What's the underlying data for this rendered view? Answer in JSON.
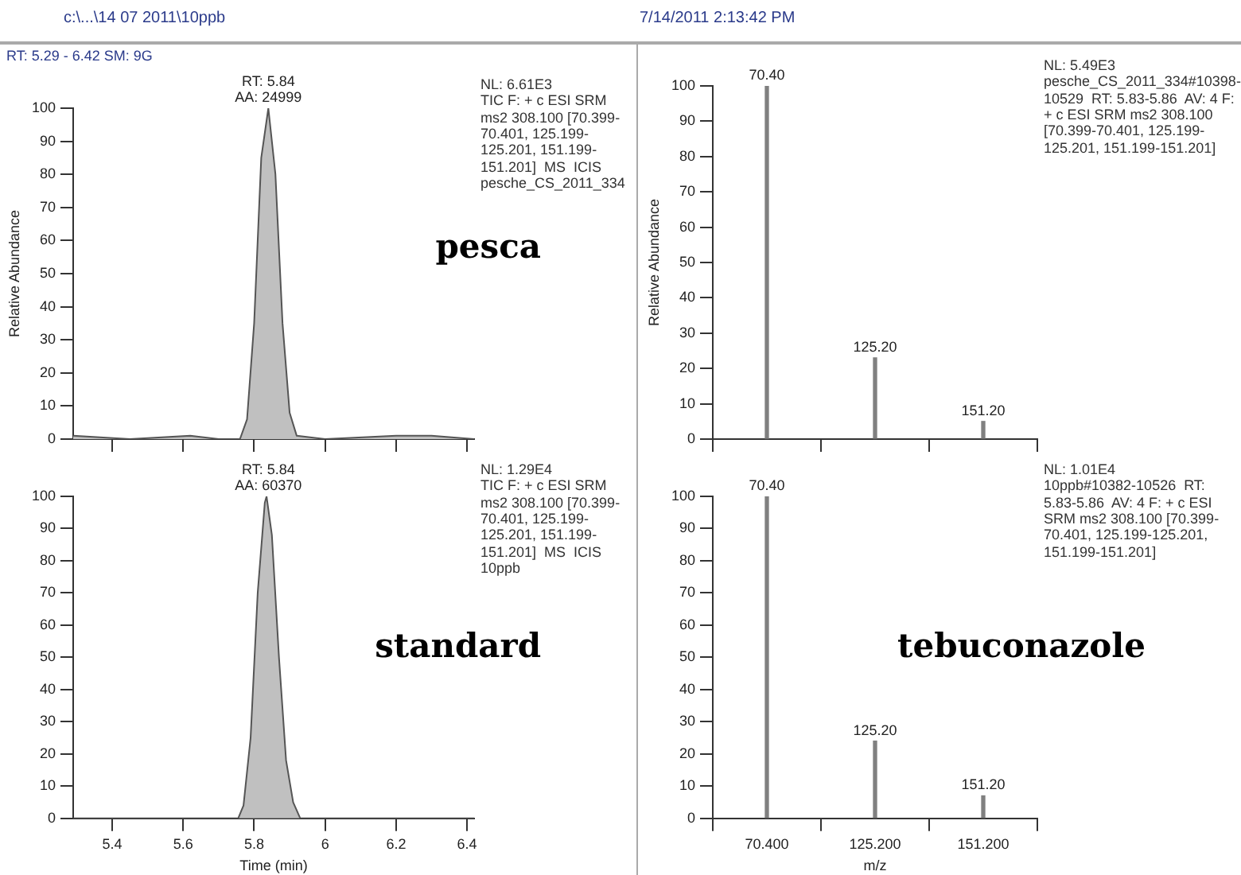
{
  "chart_data": [
    {
      "type": "area",
      "title": "c:\\...\\14 07 2011\\10ppb",
      "subtitle": "RT: 5.29 - 6.42  SM: 9G",
      "ylabel": "Relative Abundance",
      "x": [
        5.29,
        5.45,
        5.62,
        5.7,
        5.76,
        5.78,
        5.8,
        5.82,
        5.84,
        5.86,
        5.88,
        5.9,
        5.92,
        6.0,
        6.2,
        6.3,
        6.42
      ],
      "series": [
        {
          "color": "#c0c0c0",
          "values": [
            1,
            0,
            1,
            0,
            0,
            6,
            35,
            85,
            100,
            80,
            35,
            8,
            1,
            0,
            1,
            1,
            0
          ]
        }
      ],
      "xlim": [
        5.29,
        6.42
      ],
      "xticks": [
        5.4,
        5.6,
        5.8,
        6.0,
        6.2,
        6.4
      ],
      "ylim": [
        0,
        100
      ],
      "yticks": [
        0,
        10,
        20,
        30,
        40,
        50,
        60,
        70,
        80,
        90,
        100
      ],
      "tick_labels": "y",
      "annotations": [
        {
          "text": "RT: 5.84\nAA: 24999",
          "x": 5.84,
          "y": 100
        },
        "NL: 6.61E3\nTIC F: + c ESI SRM ms2 308.100 [70.399-70.401, 125.199-125.201, 151.199-151.201]  MS  ICIS pesche_CS_2011_334",
        "pesca"
      ]
    },
    {
      "type": "bar",
      "title": "7/14/2011 2:13:42 PM",
      "ylabel": "Relative Abundance",
      "categories": [
        "70.400",
        "125.200",
        "151.200"
      ],
      "series": [
        {
          "color": "#808080",
          "values": [
            100,
            23,
            5
          ]
        }
      ],
      "ylim": [
        0,
        100
      ],
      "yticks": [
        0,
        10,
        20,
        30,
        40,
        50,
        60,
        70,
        80,
        90,
        100
      ],
      "tick_labels": "y",
      "annotations": [
        {
          "text": "70.40",
          "x": "70.400",
          "y": 100
        },
        {
          "text": "125.20",
          "x": "125.200",
          "y": 23
        },
        {
          "text": "151.20",
          "x": "151.200",
          "y": 5
        },
        "NL: 5.49E3\npesche_CS_2011_334#10398-10529  RT: 5.83-5.86  AV: 4 F: + c ESI SRM ms2 308.100 [70.399-70.401, 125.199-125.201, 151.199-151.201]"
      ]
    },
    {
      "type": "area",
      "xlabel": "Time (min)",
      "x": [
        5.29,
        5.5,
        5.7,
        5.755,
        5.77,
        5.79,
        5.81,
        5.83,
        5.835,
        5.85,
        5.87,
        5.89,
        5.91,
        5.93,
        6.1,
        6.42
      ],
      "series": [
        {
          "color": "#c0c0c0",
          "values": [
            0,
            0,
            0,
            0,
            4,
            25,
            70,
            98,
            100,
            88,
            50,
            18,
            5,
            0,
            0,
            0
          ]
        }
      ],
      "xlim": [
        5.29,
        6.42
      ],
      "xticks": [
        5.4,
        5.6,
        5.8,
        6.0,
        6.2,
        6.4
      ],
      "ylim": [
        0,
        100
      ],
      "yticks": [
        0,
        10,
        20,
        30,
        40,
        50,
        60,
        70,
        80,
        90,
        100
      ],
      "annotations": [
        {
          "text": "RT: 5.84\nAA: 60370",
          "x": 5.84,
          "y": 100
        },
        "NL: 1.29E4\nTIC F: + c ESI SRM ms2 308.100 [70.399-70.401, 125.199-125.201, 151.199-151.201]  MS  ICIS 10ppb",
        "standard"
      ]
    },
    {
      "type": "bar",
      "xlabel": "m/z",
      "categories": [
        "70.400",
        "125.200",
        "151.200"
      ],
      "series": [
        {
          "color": "#808080",
          "values": [
            100,
            24,
            7
          ]
        }
      ],
      "ylim": [
        0,
        100
      ],
      "yticks": [
        0,
        10,
        20,
        30,
        40,
        50,
        60,
        70,
        80,
        90,
        100
      ],
      "annotations": [
        {
          "text": "70.40",
          "x": "70.400",
          "y": 100
        },
        {
          "text": "125.20",
          "x": "125.200",
          "y": 24
        },
        {
          "text": "151.20",
          "x": "151.200",
          "y": 7
        },
        "NL: 1.01E4\n10ppb#10382-10526  RT: 5.83-5.86  AV: 4 F: + c ESI SRM ms2 308.100 [70.399-70.401, 125.199-125.201, 151.199-151.201]",
        "tebuconazole"
      ]
    }
  ]
}
